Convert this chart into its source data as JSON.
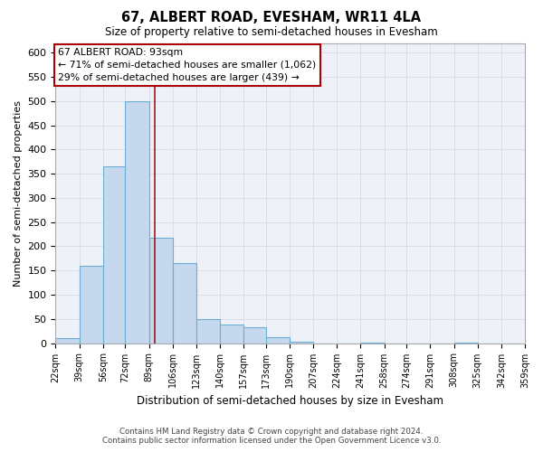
{
  "title": "67, ALBERT ROAD, EVESHAM, WR11 4LA",
  "subtitle": "Size of property relative to semi-detached houses in Evesham",
  "xlabel": "Distribution of semi-detached houses by size in Evesham",
  "ylabel": "Number of semi-detached properties",
  "footer_line1": "Contains HM Land Registry data © Crown copyright and database right 2024.",
  "footer_line2": "Contains public sector information licensed under the Open Government Licence v3.0.",
  "annotation_title": "67 ALBERT ROAD: 93sqm",
  "annotation_line1": "← 71% of semi-detached houses are smaller (1,062)",
  "annotation_line2": "29% of semi-detached houses are larger (439) →",
  "property_size": 93,
  "bin_edges": [
    22,
    39,
    56,
    72,
    89,
    106,
    123,
    140,
    157,
    173,
    190,
    207,
    224,
    241,
    258,
    274,
    291,
    308,
    325,
    342,
    359
  ],
  "bar_heights": [
    10,
    160,
    365,
    500,
    218,
    165,
    50,
    38,
    32,
    13,
    2,
    0,
    0,
    1,
    0,
    0,
    0,
    1,
    0,
    0
  ],
  "bar_color": "#c5d8ed",
  "bar_edge_color": "#6aaed6",
  "vline_color": "#9b1c1c",
  "vline_x": 93,
  "xlim": [
    22,
    359
  ],
  "ylim": [
    0,
    620
  ],
  "yticks": [
    0,
    50,
    100,
    150,
    200,
    250,
    300,
    350,
    400,
    450,
    500,
    550,
    600
  ],
  "xtick_labels": [
    "22sqm",
    "39sqm",
    "56sqm",
    "72sqm",
    "89sqm",
    "106sqm",
    "123sqm",
    "140sqm",
    "157sqm",
    "173sqm",
    "190sqm",
    "207sqm",
    "224sqm",
    "241sqm",
    "258sqm",
    "274sqm",
    "291sqm",
    "308sqm",
    "325sqm",
    "342sqm",
    "359sqm"
  ],
  "annotation_box_facecolor": "#ffffff",
  "annotation_box_edgecolor": "#aa0000",
  "grid_color": "#d0d8e4",
  "bg_color": "#eef2f8",
  "fig_bg": "#ffffff"
}
